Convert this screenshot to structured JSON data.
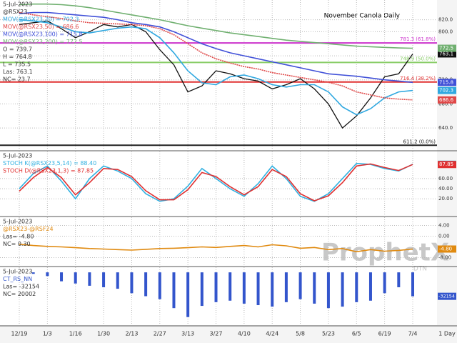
{
  "watermark": {
    "brand": "ProphetX",
    "by": "DTN"
  },
  "chart_data": [
    {
      "type": "line",
      "title": "November Canola Daily",
      "info": [
        "5-Jul-2023",
        "O = 739.7",
        "H = 764.8",
        "L = 735.5",
        "Las: 763.1",
        "NC= 23.7"
      ],
      "ylim": [
        608,
        848
      ],
      "yticks": [
        {
          "value": 640,
          "label": "640.0"
        },
        {
          "value": 680,
          "label": "680.0"
        },
        {
          "value": 720,
          "label": "720.0"
        },
        {
          "value": 760,
          "label": "760.0"
        },
        {
          "value": 800,
          "label": "800.0"
        },
        {
          "value": 820,
          "label": "820.0"
        }
      ],
      "grid": true,
      "levels": [
        {
          "value": 781.3,
          "label": "781.3 (61.8%)",
          "color": "#cc33cc"
        },
        {
          "value": 748.9,
          "label": "748.9 (50.0%)",
          "color": "#88cc66"
        },
        {
          "value": 716.4,
          "label": "716.4 (38.2%)",
          "color": "#e03030"
        },
        {
          "value": 611.2,
          "label": "611.2 (0.0%)",
          "color": "#222222"
        }
      ],
      "series": [
        {
          "name": "@RSX23",
          "color": "#111111",
          "values": [
            812,
            815,
            818,
            805,
            790,
            800,
            812,
            808,
            812,
            800,
            770,
            745,
            700,
            710,
            735,
            730,
            722,
            718,
            705,
            712,
            722,
            705,
            680,
            640,
            660,
            690,
            725,
            730,
            763.1
          ]
        },
        {
          "name": "MOV(@RSX23,20) = 702.3",
          "color": "#30a8e0",
          "values": [
            820,
            818,
            815,
            808,
            800,
            798,
            802,
            806,
            808,
            805,
            790,
            765,
            735,
            715,
            712,
            725,
            728,
            722,
            712,
            708,
            712,
            712,
            700,
            675,
            662,
            672,
            690,
            700,
            702.3
          ]
        },
        {
          "name": "MOV(@RSX23,50) = 686.6",
          "color": "#e04848",
          "dash": true,
          "values": [
            832,
            828,
            825,
            822,
            818,
            815,
            814,
            813,
            812,
            810,
            805,
            795,
            780,
            765,
            755,
            748,
            742,
            738,
            732,
            728,
            724,
            720,
            716,
            710,
            700,
            695,
            690,
            688,
            686.6
          ]
        },
        {
          "name": "MOV(@RSX23,100) = 715.8",
          "color": "#4050d8",
          "values": [
            830,
            832,
            832,
            830,
            828,
            826,
            824,
            820,
            815,
            812,
            808,
            800,
            790,
            780,
            772,
            765,
            760,
            755,
            750,
            745,
            740,
            735,
            730,
            728,
            726,
            723,
            720,
            718,
            715.8
          ]
        },
        {
          "name": "MOV(@RSX23,200) = 772.5",
          "color": "#70b070",
          "values": [
            845,
            846,
            846,
            845,
            843,
            840,
            836,
            832,
            828,
            824,
            820,
            815,
            810,
            806,
            802,
            798,
            795,
            792,
            789,
            786,
            784,
            782,
            780,
            778,
            776,
            775,
            774,
            773,
            772.5
          ]
        }
      ]
    },
    {
      "type": "line",
      "info": [
        "5-Jul-2023"
      ],
      "ylim": [
        -8,
        108
      ],
      "yticks": [
        {
          "value": 20,
          "label": "20.00"
        },
        {
          "value": 40,
          "label": "40.00"
        },
        {
          "value": 60,
          "label": "60.00"
        }
      ],
      "grid": true,
      "series": [
        {
          "name": "STOCH K(@RSX23,5,14) = 88.40",
          "color": "#30b0e0",
          "values": [
            40,
            70,
            85,
            55,
            20,
            60,
            85,
            75,
            60,
            30,
            15,
            20,
            45,
            80,
            60,
            40,
            25,
            50,
            85,
            60,
            25,
            15,
            30,
            60,
            90,
            88,
            80,
            75,
            88.4
          ]
        },
        {
          "name": "STOCH D(@RSX23,1,3) = 87.85",
          "color": "#e03030",
          "values": [
            35,
            62,
            82,
            62,
            28,
            52,
            80,
            78,
            64,
            36,
            18,
            18,
            38,
            72,
            64,
            44,
            28,
            44,
            78,
            64,
            30,
            16,
            26,
            52,
            85,
            89,
            82,
            76,
            87.85
          ]
        }
      ]
    },
    {
      "type": "line",
      "info": [
        "5-Jul-2023",
        "Las= -4.80",
        "NC= 0.30"
      ],
      "ylim": [
        -10,
        6
      ],
      "yticks": [
        {
          "value": 4,
          "label": "4.00"
        },
        {
          "value": 0,
          "label": "0.00"
        },
        {
          "value": -8,
          "label": "-8.00"
        }
      ],
      "grid": true,
      "last_box": "-4.80",
      "series": [
        {
          "name": "@RSX23-@RSF24",
          "color": "#e08a10",
          "values": [
            -3,
            -3.5,
            -3.8,
            -4,
            -4.3,
            -4.6,
            -4.8,
            -5,
            -5.2,
            -4.9,
            -4.6,
            -4.5,
            -4.3,
            -4,
            -4.2,
            -3.8,
            -3.5,
            -4,
            -3.2,
            -3.6,
            -4.5,
            -4.2,
            -5,
            -4.6,
            -5.8,
            -5,
            -5.6,
            -5.3,
            -4.8
          ]
        }
      ]
    },
    {
      "type": "bar",
      "info": [
        "5-Jul-2023",
        "Las= -32154",
        "NC= 20002"
      ],
      "ylim": [
        -67000,
        3000
      ],
      "yticks": [],
      "grid": true,
      "categories": [
        "12/19",
        null,
        "1/3",
        null,
        "1/16",
        null,
        "1/30",
        null,
        "2/13",
        null,
        "2/27",
        null,
        "3/13",
        null,
        "3/27",
        null,
        "4/10",
        null,
        "4/24",
        null,
        "5/8",
        null,
        "5/23",
        null,
        "6/5",
        null,
        "6/19",
        null,
        "7/4"
      ],
      "x_unit": "1 Day",
      "series": [
        {
          "name": "CT_RS_NN",
          "color": "#3355cc",
          "values": [
            null,
            -2000,
            -5000,
            -12000,
            -15000,
            -18000,
            -20000,
            -22000,
            -28000,
            -32000,
            -36000,
            -48000,
            -60000,
            -45000,
            -40000,
            -38000,
            -42000,
            -44000,
            -46000,
            -40000,
            -36000,
            -42000,
            -48000,
            -46000,
            -40000,
            -38000,
            -28000,
            -20000,
            -32154
          ]
        }
      ]
    }
  ]
}
